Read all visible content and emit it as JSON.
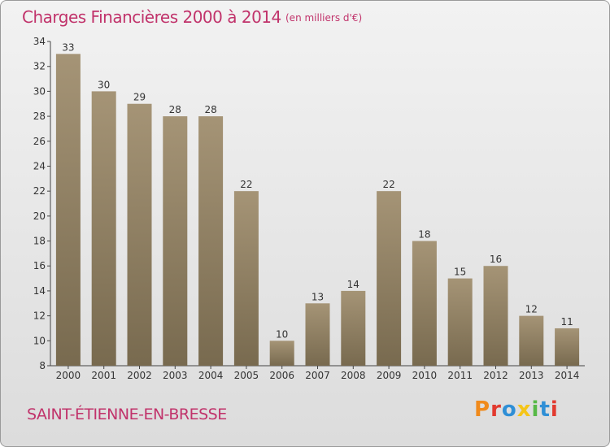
{
  "header": {
    "title": "Charges Financières 2000 à 2014",
    "subtitle": "(en milliers d'€)"
  },
  "footer": {
    "commune": "SAINT-ÉTIENNE-EN-BRESSE",
    "logo_text": "Proxiti"
  },
  "colors": {
    "bar_top": "#a59476",
    "bar_bottom": "#786a4f",
    "title": "#c1336b",
    "logo": [
      "#f08a1c",
      "#e23a2f",
      "#2f8fd6",
      "#f5c518",
      "#57b947",
      "#2f8fd6",
      "#e23a2f"
    ]
  },
  "chart_data": {
    "type": "bar",
    "categories": [
      "2000",
      "2001",
      "2002",
      "2003",
      "2004",
      "2005",
      "2006",
      "2007",
      "2008",
      "2009",
      "2010",
      "2011",
      "2012",
      "2013",
      "2014"
    ],
    "values": [
      33,
      30,
      29,
      28,
      28,
      22,
      10,
      13,
      14,
      22,
      18,
      15,
      16,
      12,
      11
    ],
    "title": "Charges Financières 2000 à 2014",
    "ylim": [
      8,
      34
    ],
    "yticks": [
      8,
      10,
      12,
      14,
      16,
      18,
      20,
      22,
      24,
      26,
      28,
      30,
      32,
      34
    ],
    "grid": false,
    "legend": "none"
  }
}
